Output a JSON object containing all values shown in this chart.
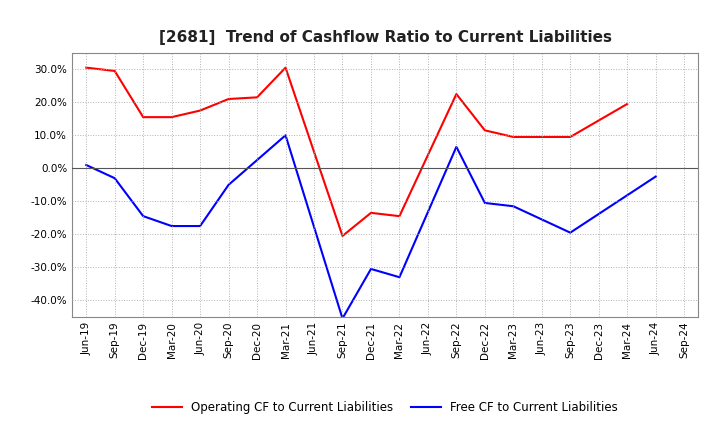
{
  "title": "[2681]  Trend of Cashflow Ratio to Current Liabilities",
  "ylim": [
    -0.45,
    0.35
  ],
  "yticks": [
    -0.4,
    -0.3,
    -0.2,
    -0.1,
    0.0,
    0.1,
    0.2,
    0.3
  ],
  "x_labels": [
    "Jun-19",
    "Sep-19",
    "Dec-19",
    "Mar-20",
    "Jun-20",
    "Sep-20",
    "Dec-20",
    "Mar-21",
    "Jun-21",
    "Sep-21",
    "Dec-21",
    "Mar-22",
    "Jun-22",
    "Sep-22",
    "Dec-22",
    "Mar-23",
    "Jun-23",
    "Sep-23",
    "Dec-23",
    "Mar-24",
    "Jun-24",
    "Sep-24"
  ],
  "op_x": [
    0,
    1,
    2,
    3,
    4,
    5,
    6,
    7,
    9,
    10,
    11,
    13,
    14,
    15,
    16,
    17,
    19
  ],
  "op_y": [
    0.305,
    0.295,
    0.155,
    0.155,
    0.175,
    0.21,
    0.215,
    0.305,
    -0.205,
    -0.135,
    -0.145,
    0.225,
    0.115,
    0.095,
    0.095,
    0.095,
    0.195
  ],
  "free_x": [
    0,
    1,
    2,
    3,
    4,
    5,
    6,
    7,
    9,
    10,
    11,
    13,
    14,
    15,
    16,
    17,
    20
  ],
  "free_y": [
    0.01,
    -0.03,
    -0.145,
    -0.175,
    -0.175,
    -0.05,
    0.025,
    0.1,
    -0.455,
    -0.305,
    -0.33,
    0.065,
    -0.105,
    -0.115,
    -0.155,
    -0.195,
    -0.025
  ],
  "operating_color": "#FF0000",
  "free_color": "#0000FF",
  "background_color": "#FFFFFF",
  "grid_color": "#AAAAAA",
  "title_fontsize": 11,
  "tick_fontsize": 7.5,
  "legend_fontsize": 8.5
}
